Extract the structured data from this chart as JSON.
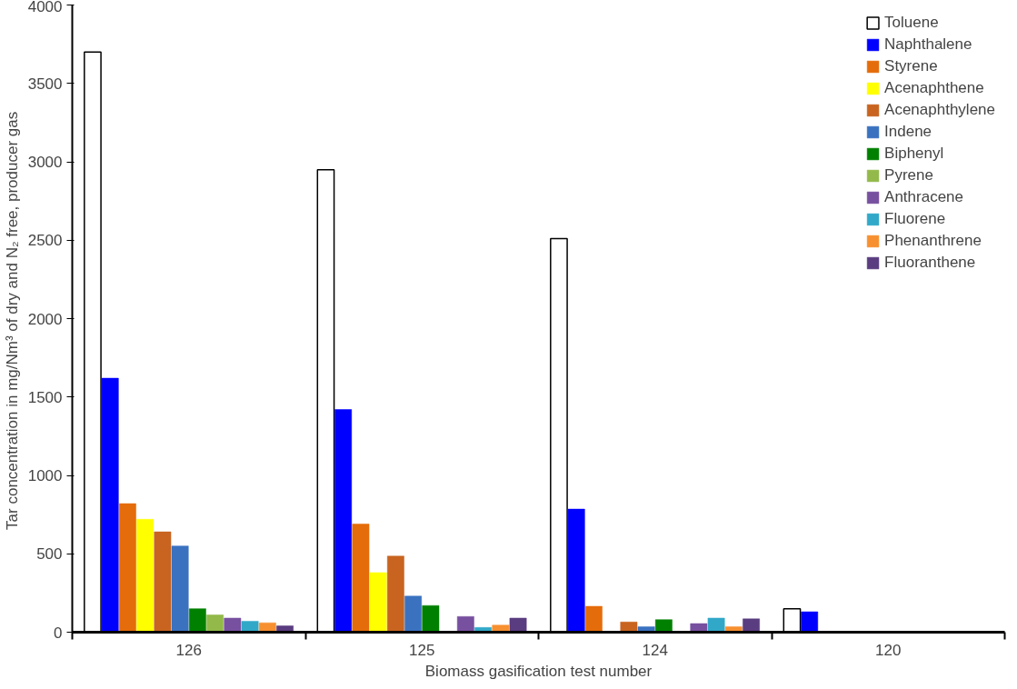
{
  "chart_data": {
    "type": "bar",
    "xlabel": "Biomass gasification test number",
    "ylabel": "Tar concentration in mg/Nm³ of dry and  N₂ free, producer gas",
    "categories": [
      "126",
      "125",
      "124",
      "120"
    ],
    "ylim": [
      0,
      4000
    ],
    "yticks": [
      0,
      500,
      1000,
      1500,
      2000,
      2500,
      3000,
      3500,
      4000
    ],
    "grid": false,
    "legend": "top right",
    "series": [
      {
        "name": "Toluene",
        "color": "#ffffff",
        "values": [
          3700,
          2950,
          2510,
          150
        ]
      },
      {
        "name": "Naphthalene",
        "color": "#0000ff",
        "values": [
          1620,
          1420,
          785,
          130
        ]
      },
      {
        "name": "Styrene",
        "color": "#e46c0a",
        "values": [
          820,
          690,
          165,
          null
        ]
      },
      {
        "name": "Acenaphthene",
        "color": "#ffff00",
        "values": [
          720,
          380,
          null,
          null
        ]
      },
      {
        "name": "Acenaphthylene",
        "color": "#c86420",
        "values": [
          640,
          485,
          65,
          null
        ]
      },
      {
        "name": "Indene",
        "color": "#3a72c0",
        "values": [
          550,
          230,
          35,
          null
        ]
      },
      {
        "name": "Biphenyl",
        "color": "#008000",
        "values": [
          150,
          170,
          80,
          null
        ]
      },
      {
        "name": "Pyrene",
        "color": "#92b94a",
        "values": [
          110,
          null,
          null,
          null
        ]
      },
      {
        "name": "Anthracene",
        "color": "#7850a0",
        "values": [
          90,
          100,
          55,
          null
        ]
      },
      {
        "name": "Fluorene",
        "color": "#31a8c8",
        "values": [
          70,
          30,
          90,
          null
        ]
      },
      {
        "name": "Phenanthrene",
        "color": "#f79030",
        "values": [
          60,
          45,
          35,
          null
        ]
      },
      {
        "name": "Fluoranthene",
        "color": "#5a3c80",
        "values": [
          40,
          90,
          85,
          null
        ]
      }
    ]
  }
}
